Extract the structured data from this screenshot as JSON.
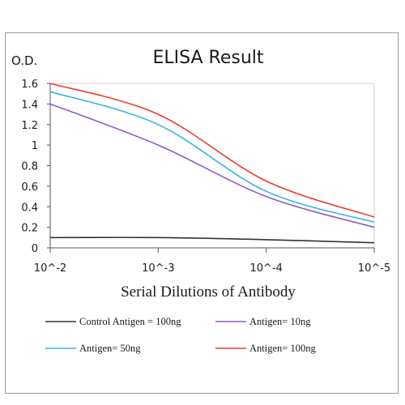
{
  "chart_data": {
    "type": "line",
    "title": "ELISA Result",
    "ylabel": "O.D.",
    "xlabel": "Serial Dilutions  of Antibody",
    "x": [
      0.01,
      0.001,
      0.0001,
      1e-05
    ],
    "x_tick_labels": [
      "10^-2",
      "10^-3",
      "10^-4",
      "10^-5"
    ],
    "x_scale": "log",
    "y_ticks": [
      "0",
      "0.2",
      "0.4",
      "0.6",
      "0.8",
      "1",
      "1.2",
      "1.4",
      "1.6"
    ],
    "ylim": [
      0,
      1.6
    ],
    "grid": "none",
    "legend_position": "bottom",
    "series": [
      {
        "name": "Control Antigen = 100ng",
        "color": "#333333",
        "values": [
          0.1,
          0.1,
          0.08,
          0.05
        ]
      },
      {
        "name": "Antigen= 10ng",
        "color": "#8e5bc2",
        "values": [
          1.4,
          1.0,
          0.5,
          0.2
        ]
      },
      {
        "name": "Antigen= 50ng",
        "color": "#33b5e8",
        "values": [
          1.52,
          1.2,
          0.55,
          0.25
        ]
      },
      {
        "name": "Antigen= 100ng",
        "color": "#ee3b36",
        "values": [
          1.6,
          1.3,
          0.65,
          0.3
        ]
      }
    ]
  }
}
